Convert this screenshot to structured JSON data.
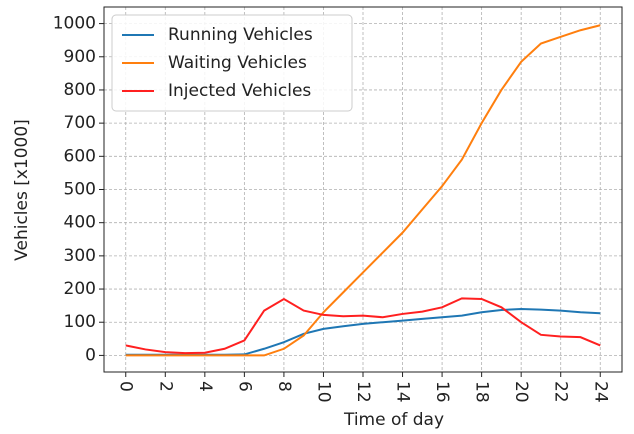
{
  "chart_data": {
    "type": "line",
    "xlabel": "Time of day",
    "ylabel": "Vehicles [x1000]",
    "x": [
      0,
      1,
      2,
      3,
      4,
      5,
      6,
      7,
      8,
      9,
      10,
      11,
      12,
      13,
      14,
      15,
      16,
      17,
      18,
      19,
      20,
      21,
      22,
      23,
      24
    ],
    "series": [
      {
        "name": "Running Vehicles",
        "color": "#1f77b4",
        "values": [
          2,
          2,
          2,
          2,
          2,
          2,
          3,
          20,
          40,
          65,
          80,
          88,
          95,
          100,
          105,
          110,
          115,
          120,
          130,
          137,
          140,
          138,
          135,
          130,
          127
        ]
      },
      {
        "name": "Waiting Vehicles",
        "color": "#ff7f0e",
        "values": [
          0,
          0,
          0,
          0,
          0,
          0,
          0,
          0,
          20,
          60,
          130,
          190,
          250,
          310,
          370,
          440,
          510,
          590,
          700,
          800,
          885,
          940,
          960,
          980,
          995
        ]
      },
      {
        "name": "Injected Vehicles",
        "color": "#ff2020",
        "values": [
          30,
          18,
          10,
          7,
          8,
          20,
          45,
          135,
          170,
          135,
          122,
          118,
          120,
          115,
          125,
          132,
          145,
          172,
          170,
          145,
          100,
          62,
          57,
          55,
          30
        ]
      }
    ],
    "xlim": [
      -1.1,
      25.1
    ],
    "ylim": [
      -50,
      1050
    ],
    "xticks": [
      0,
      2,
      4,
      6,
      8,
      10,
      12,
      14,
      16,
      18,
      20,
      22,
      24
    ],
    "yticks": [
      0,
      100,
      200,
      300,
      400,
      500,
      600,
      700,
      800,
      900,
      1000
    ],
    "grid": true,
    "legend": "upper left"
  }
}
